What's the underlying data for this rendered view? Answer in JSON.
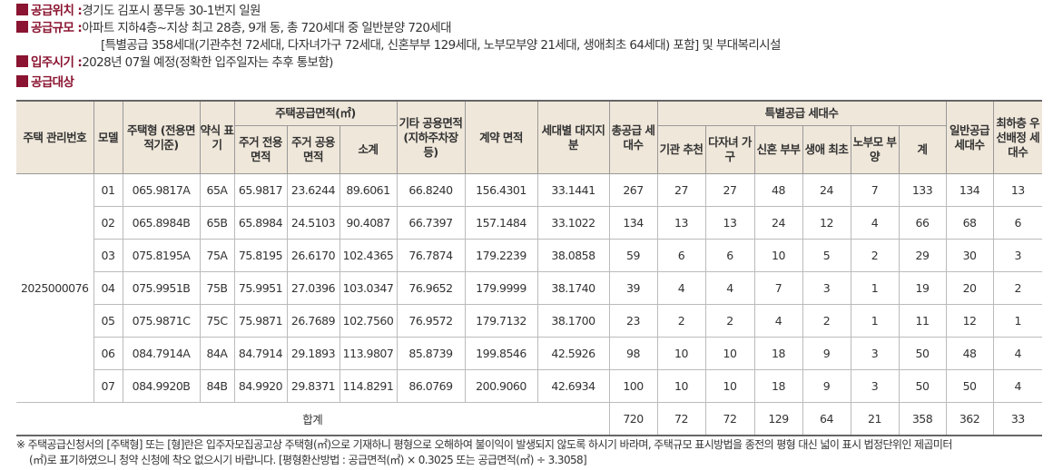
{
  "info": {
    "location_label": "공급위치 :",
    "location": "경기도 김포시 풍무동 30-1번지 일원",
    "scale_label": "공급규모 :",
    "scale": "아파트 지하4층~지상 최고 28층, 9개 동, 총 720세대 중 일반분양 720세대",
    "scale2": "[특별공급 358세대(기관추천 72세대, 다자녀가구 72세대, 신혼부부 129세대, 노부모부양 21세대, 생애최초 64세대) 포함] 및 부대복리시설",
    "movein_label": "입주시기 :",
    "movein": "2028년 07월 예정(정확한 입주일자는 추후 통보함)",
    "target_label": "공급대상"
  },
  "headers": {
    "mgmt_no": "주택 관리번호",
    "model": "모델",
    "type": "주택형 (전용면적기준)",
    "abbr": "약식 표기",
    "supply_area": "주택공급면적(㎡)",
    "exclusive": "주거 전용면적",
    "common": "주거 공용면적",
    "subtotal": "소계",
    "other_common": "기타 공용면적 (지하주차장등)",
    "contract": "계약 면적",
    "land": "세대별 대지지분",
    "total": "총공급 세대수",
    "special": "특별공급 세대수",
    "inst": "기관 추천",
    "multi": "다자녀 가구",
    "newlywed": "신혼 부부",
    "first": "생애 최초",
    "elderly": "노부모 부양",
    "special_sum": "계",
    "general": "일반공급 세대수",
    "lowest": "최하층 우선배정 세대수"
  },
  "mgmt_no": "2025000076",
  "rows": [
    [
      "01",
      "065.9817A",
      "65A",
      "65.9817",
      "23.6244",
      "89.6061",
      "66.8240",
      "156.4301",
      "33.1441",
      "267",
      "27",
      "27",
      "48",
      "24",
      "7",
      "133",
      "134",
      "13"
    ],
    [
      "02",
      "065.8984B",
      "65B",
      "65.8984",
      "24.5103",
      "90.4087",
      "66.7397",
      "157.1484",
      "33.1022",
      "134",
      "13",
      "13",
      "24",
      "12",
      "4",
      "66",
      "68",
      "6"
    ],
    [
      "03",
      "075.8195A",
      "75A",
      "75.8195",
      "26.6170",
      "102.4365",
      "76.7874",
      "179.2239",
      "38.0858",
      "59",
      "6",
      "6",
      "10",
      "5",
      "2",
      "29",
      "30",
      "3"
    ],
    [
      "04",
      "075.9951B",
      "75B",
      "75.9951",
      "27.0396",
      "103.0347",
      "76.9652",
      "179.9999",
      "38.1740",
      "39",
      "4",
      "4",
      "7",
      "3",
      "1",
      "19",
      "20",
      "2"
    ],
    [
      "05",
      "075.9871C",
      "75C",
      "75.9871",
      "26.7689",
      "102.7560",
      "76.9572",
      "179.7132",
      "38.1700",
      "23",
      "2",
      "2",
      "4",
      "2",
      "1",
      "11",
      "12",
      "1"
    ],
    [
      "06",
      "084.7914A",
      "84A",
      "84.7914",
      "29.1893",
      "113.9807",
      "85.8739",
      "199.8546",
      "42.5926",
      "98",
      "10",
      "10",
      "18",
      "9",
      "3",
      "50",
      "48",
      "4"
    ],
    [
      "07",
      "084.9920B",
      "84B",
      "84.9920",
      "29.8371",
      "114.8291",
      "86.0769",
      "200.9060",
      "42.6934",
      "100",
      "10",
      "10",
      "18",
      "9",
      "3",
      "50",
      "50",
      "4"
    ]
  ],
  "total_row": {
    "label": "합계",
    "values": [
      "720",
      "72",
      "72",
      "129",
      "64",
      "21",
      "358",
      "362",
      "33"
    ]
  },
  "footnote": {
    "line1": "※ 주택공급신청서의 [주택형] 또는 [형]란은 입주자모집공고상 주택형(㎡)으로 기재하니 평형으로 오해하여 불이익이 발생되지 않도록 하시기 바라며, 주택규모 표시방법을 종전의 평형 대신 넓이 표시 법정단위인 제곱미터",
    "line2": "(㎡)로 표기하였으니 청약 신청에 착오 없으시기 바랍니다. [평형환산방법 : 공급면적(㎡) × 0.3025 또는 공급면적(㎡) ÷ 3.3058]"
  }
}
